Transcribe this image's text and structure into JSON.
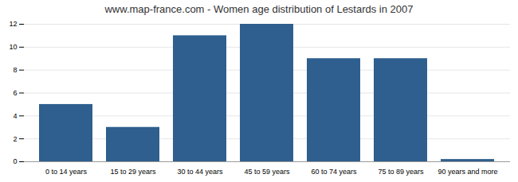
{
  "chart_data": {
    "type": "bar",
    "title": "www.map-france.com - Women age distribution of Lestards in 2007",
    "categories": [
      "0 to 14 years",
      "15 to 29 years",
      "30 to 44 years",
      "45 to 59 years",
      "60 to 74 years",
      "75 to 89 years",
      "90 years and more"
    ],
    "values": [
      5,
      3,
      11,
      12,
      9,
      9,
      0.2
    ],
    "color": "#2E5F8E",
    "ylim": [
      0,
      12
    ],
    "yticks": [
      0,
      2,
      4,
      6,
      8,
      10,
      12
    ],
    "grid": true
  }
}
